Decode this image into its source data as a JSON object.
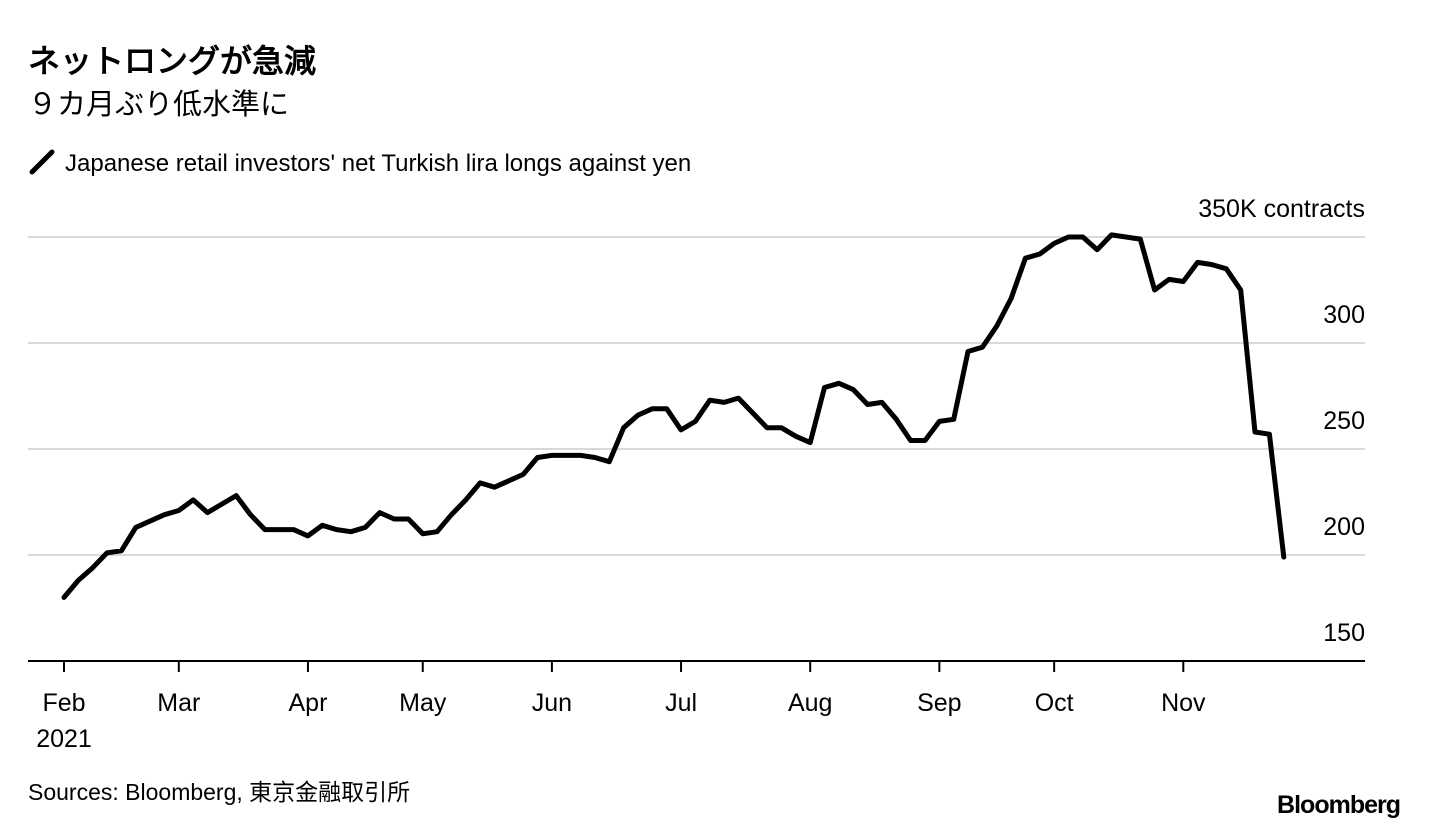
{
  "chart_data": {
    "type": "line",
    "title": "ネットロングが急減",
    "subtitle": "９カ月ぶり低水準に",
    "source": "Sources: Bloomberg, 東京金融取引所",
    "brand": "Bloomberg",
    "x_year": "2021",
    "categories": [
      "Feb",
      null,
      null,
      null,
      null,
      null,
      null,
      null,
      "Mar",
      null,
      null,
      null,
      null,
      null,
      null,
      null,
      null,
      "Apr",
      null,
      null,
      null,
      null,
      null,
      null,
      null,
      "May",
      null,
      null,
      null,
      null,
      null,
      null,
      null,
      null,
      "Jun",
      null,
      null,
      null,
      null,
      null,
      null,
      null,
      null,
      "Jul",
      null,
      null,
      null,
      null,
      null,
      null,
      null,
      null,
      "Aug",
      null,
      null,
      null,
      null,
      null,
      null,
      null,
      null,
      "Sep",
      null,
      null,
      null,
      null,
      null,
      null,
      null,
      "Oct",
      null,
      null,
      null,
      null,
      null,
      null,
      null,
      null,
      "Nov",
      null,
      null,
      null,
      null,
      null,
      null,
      null
    ],
    "series": [
      {
        "name": "Japanese retail investors' net Turkish lira longs against yen",
        "color": "#000000",
        "values": [
          180,
          188,
          194,
          201,
          202,
          213,
          216,
          219,
          221,
          226,
          220,
          224,
          228,
          219,
          212,
          212,
          212,
          209,
          214,
          212,
          211,
          213,
          220,
          217,
          217,
          210,
          211,
          219,
          226,
          234,
          232,
          235,
          238,
          246,
          247,
          247,
          247,
          246,
          244,
          260,
          266,
          269,
          269,
          259,
          263,
          273,
          272,
          274,
          267,
          260,
          260,
          256,
          253,
          279,
          281,
          278,
          271,
          272,
          264,
          254,
          254,
          263,
          264,
          296,
          298,
          308,
          321,
          340,
          342,
          347,
          350,
          350,
          344,
          351,
          350,
          349,
          325,
          330,
          329,
          338,
          337,
          335,
          325,
          258,
          257,
          199
        ]
      }
    ],
    "ylim": [
      150,
      350
    ],
    "yticks": [
      150,
      200,
      250,
      300,
      {
        "value": 350,
        "label": "350K contracts"
      }
    ],
    "grid": true
  }
}
